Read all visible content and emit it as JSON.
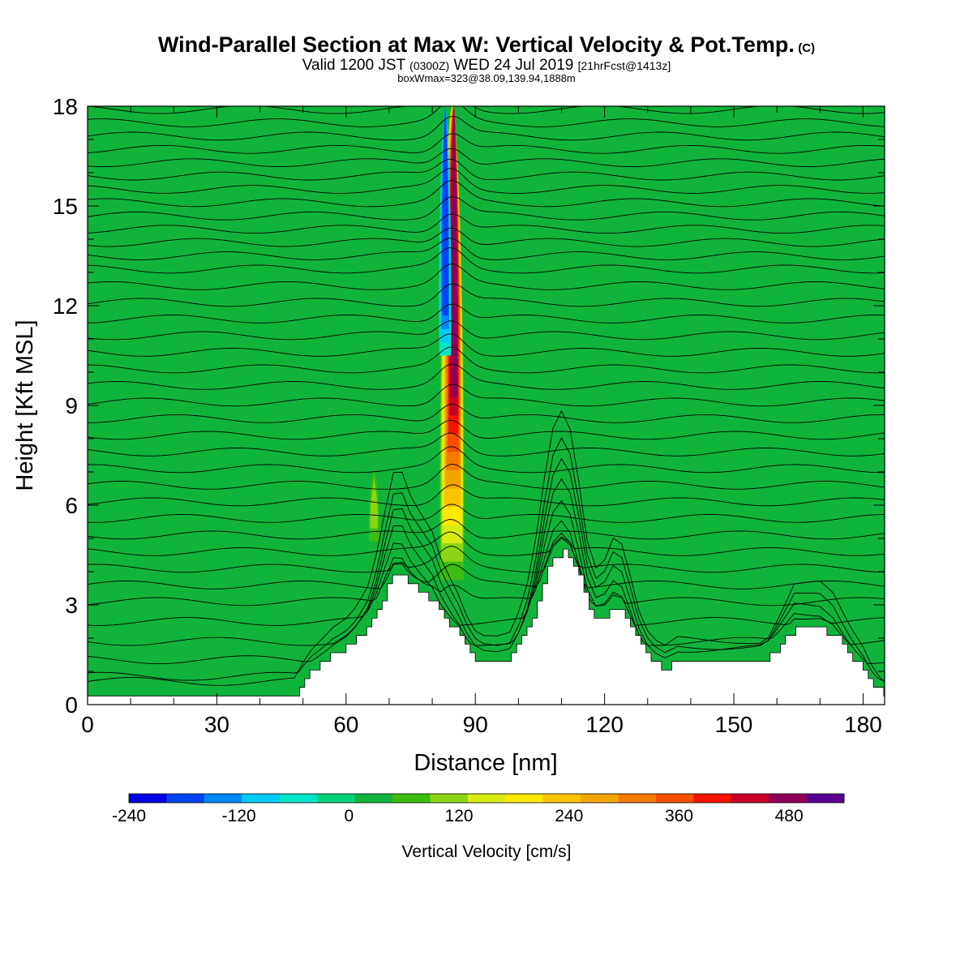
{
  "chart_data": {
    "type": "heatmap",
    "title": "Wind-Parallel Section at Max W: Vertical Velocity & Pot.Temp.",
    "title_mark": "(C)",
    "subtitle_prefix": "Valid 1200 JST",
    "subtitle_utc": "(0300Z)",
    "subtitle_date": "WED 24 Jul 2019",
    "subtitle_fcst": "[21hrFcst@1413z]",
    "subline": "boxWmax=323@38.09,139.94,1888m",
    "xlabel": "Distance [nm]",
    "ylabel": "Height [Kft MSL]",
    "xlim": [
      0,
      185
    ],
    "ylim": [
      0,
      18
    ],
    "x_ticks": [
      0,
      30,
      60,
      90,
      120,
      150,
      180
    ],
    "y_ticks": [
      0,
      3,
      6,
      9,
      12,
      15,
      18
    ],
    "grid": false,
    "colorbar": {
      "title": "Vertical Velocity [cm/s]",
      "tick_labels": [
        "-240",
        "-120",
        "0",
        "120",
        "240",
        "360",
        "480"
      ],
      "tick_values": [
        -240,
        -120,
        0,
        120,
        240,
        360,
        480
      ],
      "range": [
        -240,
        540
      ],
      "bin_width": 40,
      "colors": [
        "#0000e6",
        "#0044f2",
        "#0088f5",
        "#00ccf5",
        "#00e6c8",
        "#00d27a",
        "#10b43a",
        "#3cbd10",
        "#8cd514",
        "#d8ec10",
        "#ffe800",
        "#fcc400",
        "#f4a400",
        "#f47c00",
        "#f45000",
        "#f51400",
        "#c80028",
        "#900058",
        "#5a0090"
      ]
    },
    "background_velocity": 0,
    "terrain": {
      "x": [
        0,
        48,
        50,
        52,
        55,
        57,
        60,
        62,
        65,
        67,
        69,
        71,
        73,
        75,
        78,
        80,
        82,
        84,
        86,
        88,
        90,
        92,
        95,
        98,
        100,
        102,
        104,
        106,
        108,
        110,
        112,
        114,
        116,
        118,
        120,
        122,
        124,
        126,
        128,
        130,
        132,
        134,
        137,
        140,
        143,
        147,
        150,
        153,
        156,
        158,
        160,
        162,
        164,
        167,
        170,
        173,
        175,
        177,
        180,
        182,
        184,
        185
      ],
      "height_kft": [
        0.3,
        0.3,
        0.7,
        1.0,
        1.3,
        1.5,
        1.7,
        1.9,
        2.3,
        2.8,
        3.4,
        3.9,
        3.9,
        3.6,
        3.3,
        3.1,
        2.7,
        2.4,
        2.1,
        1.7,
        1.4,
        1.3,
        1.3,
        1.4,
        1.8,
        2.3,
        3.0,
        3.8,
        4.4,
        4.6,
        4.4,
        3.8,
        3.0,
        2.6,
        2.7,
        3.0,
        2.9,
        2.4,
        1.8,
        1.4,
        1.2,
        1.1,
        1.3,
        1.3,
        1.3,
        1.3,
        1.3,
        1.3,
        1.3,
        1.4,
        1.7,
        2.0,
        2.3,
        2.3,
        2.3,
        2.1,
        1.8,
        1.5,
        1.1,
        0.7,
        0.4,
        0.3
      ]
    },
    "theta_contours": {
      "base_kft": [
        0.35,
        0.85,
        1.35,
        1.9,
        2.5,
        3.1,
        3.6,
        4.1,
        4.6,
        5.1,
        5.6,
        6.1,
        6.6,
        7.1,
        7.6,
        8.1,
        8.6,
        9.1,
        9.6,
        10.1,
        10.6,
        11.1,
        11.6,
        12.1,
        12.6,
        13.1,
        13.5,
        13.9,
        14.3,
        14.7,
        15.1,
        15.5,
        15.9,
        16.3,
        16.7,
        17.1,
        17.5,
        17.9
      ]
    },
    "w_features": [
      {
        "name": "updraft-core",
        "x_nm": 84.5,
        "base_kft": 3.2,
        "top_kft": 18.0,
        "peak_cm_s": 500
      },
      {
        "name": "downdraft-core",
        "x_nm": 83.0,
        "base_kft": 10.5,
        "top_kft": 18.0,
        "peak_cm_s": -160
      },
      {
        "name": "lee-updraft",
        "x_nm": 66.5,
        "base_kft": 4.5,
        "top_kft": 7.5,
        "peak_cm_s": 130
      }
    ]
  }
}
